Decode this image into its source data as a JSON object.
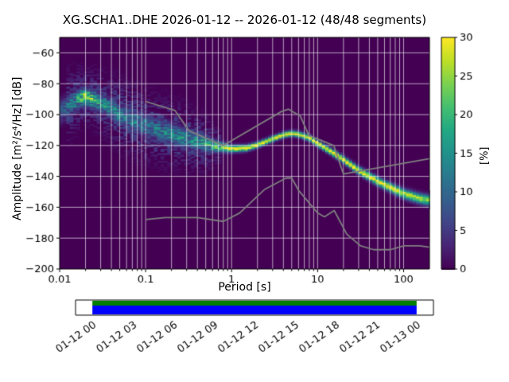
{
  "title": "XG.SCHA1..DHE   2026-01-12 -- 2026-01-12  (48/48 segments)",
  "axes": {
    "xlabel": "Period [s]",
    "ylabel": "Amplitude [m²/s⁴/Hz] [dB]",
    "x_ticks": [
      {
        "v": 0.01,
        "label": "0.01"
      },
      {
        "v": 0.1,
        "label": "0.1"
      },
      {
        "v": 1,
        "label": "1"
      },
      {
        "v": 10,
        "label": "10"
      },
      {
        "v": 100,
        "label": "100"
      }
    ],
    "y_ticks": [
      {
        "v": -60,
        "label": "−60"
      },
      {
        "v": -80,
        "label": "−80"
      },
      {
        "v": -100,
        "label": "−100"
      },
      {
        "v": -120,
        "label": "−120"
      },
      {
        "v": -140,
        "label": "−140"
      },
      {
        "v": -160,
        "label": "−160"
      },
      {
        "v": -180,
        "label": "−180"
      },
      {
        "v": -200,
        "label": "−200"
      }
    ]
  },
  "colorbar": {
    "label": "[%]",
    "min": 0,
    "max": 30,
    "ticks": [
      0,
      5,
      10,
      15,
      20,
      25,
      30
    ]
  },
  "chart_data": {
    "type": "heatmap",
    "title": "XG.SCHA1..DHE   2026-01-12 -- 2026-01-12  (48/48 segments)",
    "xlabel": "Period [s]",
    "ylabel": "Amplitude [m²/s⁴/Hz] [dB]",
    "xscale": "log",
    "xlim": [
      0.01,
      200
    ],
    "ylim": [
      -200,
      -50
    ],
    "grid": true,
    "colormap": "viridis",
    "background_color": "#440154",
    "colormap_stops": [
      [
        0.0,
        "#440154"
      ],
      [
        0.1,
        "#482475"
      ],
      [
        0.2,
        "#414487"
      ],
      [
        0.3,
        "#355f8d"
      ],
      [
        0.4,
        "#2a788e"
      ],
      [
        0.5,
        "#21918c"
      ],
      [
        0.6,
        "#22a884"
      ],
      [
        0.7,
        "#44bf70"
      ],
      [
        0.8,
        "#7ad151"
      ],
      [
        0.9,
        "#bddf26"
      ],
      [
        1.0,
        "#fde725"
      ]
    ],
    "mode_curve": {
      "periods": [
        0.01,
        0.013,
        0.016,
        0.02,
        0.025,
        0.032,
        0.04,
        0.05,
        0.07,
        0.1,
        0.15,
        0.2,
        0.3,
        0.5,
        0.7,
        1.0,
        1.5,
        2.0,
        3.0,
        4.0,
        5.0,
        6.0,
        8.0,
        10,
        15,
        20,
        30,
        50,
        70,
        100,
        150,
        200
      ],
      "db": [
        -98,
        -94,
        -90,
        -88,
        -90,
        -93,
        -96,
        -99.5,
        -103.5,
        -107,
        -110.5,
        -112.5,
        -115.5,
        -118.5,
        -120.5,
        -122,
        -121.5,
        -119.5,
        -115.5,
        -113,
        -112,
        -112.5,
        -115,
        -118.5,
        -124.5,
        -129,
        -136,
        -143,
        -147,
        -151,
        -154,
        -155.5
      ]
    },
    "peak_percent": {
      "periods": [
        0.01,
        0.016,
        0.02,
        0.03,
        0.05,
        0.1,
        0.2,
        0.4,
        0.6,
        0.8,
        1,
        2,
        20,
        50,
        100,
        200
      ],
      "values": [
        6,
        16,
        24,
        15,
        12,
        12,
        13,
        14,
        17,
        24,
        29,
        30,
        30,
        29,
        27,
        25
      ]
    },
    "spread_db": {
      "periods": [
        0.01,
        0.02,
        0.05,
        0.1,
        0.3,
        0.5,
        0.7,
        1,
        2,
        5,
        10,
        20,
        50,
        100,
        200
      ],
      "values": [
        5,
        3.5,
        4.5,
        4.6,
        4.2,
        3.5,
        2.2,
        1.5,
        1.2,
        1.2,
        1.3,
        1.5,
        1.8,
        2.0,
        2.2
      ]
    },
    "noise_models": {
      "color": "#7f7f7f",
      "nhnm": {
        "periods": [
          0.1,
          0.22,
          0.32,
          0.8,
          3.8,
          4.6,
          6.3,
          7.9,
          15.4,
          20,
          200
        ],
        "db": [
          -91.5,
          -97.4,
          -110.5,
          -120,
          -98,
          -96.5,
          -101,
          -113.5,
          -120,
          -138.5,
          -128.5
        ]
      },
      "nlnm": {
        "periods": [
          0.1,
          0.17,
          0.4,
          0.8,
          1.24,
          2.4,
          4.3,
          5.0,
          6.0,
          10,
          12,
          15.6,
          21.9,
          31.6,
          45,
          70,
          101,
          154,
          200
        ],
        "db": [
          -168,
          -166.7,
          -166.7,
          -169.2,
          -163.7,
          -148.6,
          -141.1,
          -141.1,
          -149,
          -163.7,
          -166.2,
          -162.1,
          -177.5,
          -185,
          -187.5,
          -187.5,
          -185,
          -185,
          -185.9
        ]
      }
    },
    "coverage": {
      "labels": [
        "01-12 00",
        "01-12 03",
        "01-12 06",
        "01-12 09",
        "01-12 12",
        "01-12 15",
        "01-12 18",
        "01-12 21",
        "01-13 00"
      ],
      "fill_start_frac": 0.047,
      "fill_end_frac": 0.953,
      "colors": {
        "data": "#0000ff",
        "segment": "#008000"
      }
    }
  }
}
